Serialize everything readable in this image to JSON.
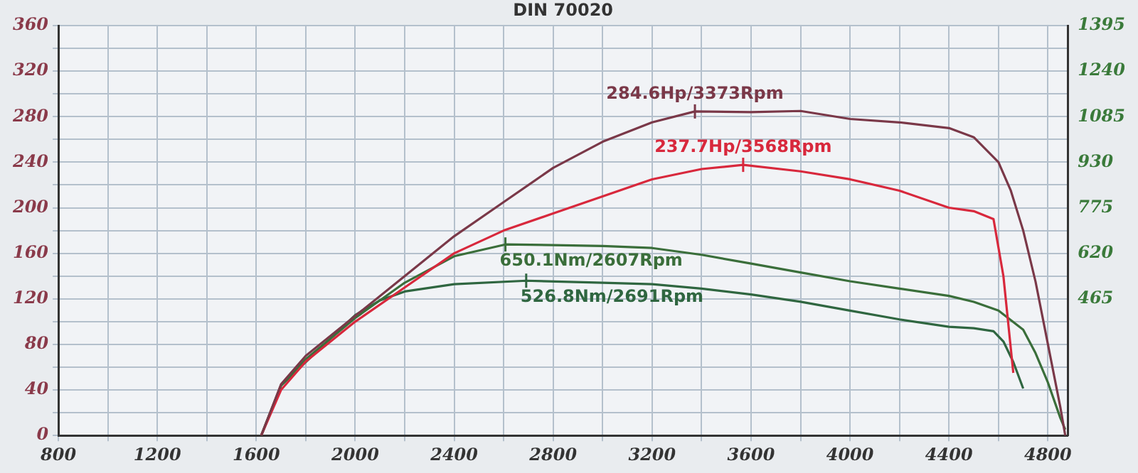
{
  "chart_data": {
    "type": "line",
    "annotations": [
      "DIN 70020"
    ],
    "xlim": [
      800,
      4880
    ],
    "xticks": [
      800,
      {
        "value": 1000,
        "label": null
      },
      1200,
      {
        "value": 1400,
        "label": null
      },
      1600,
      {
        "value": 1800,
        "label": null
      },
      2000,
      {
        "value": 2200,
        "label": null
      },
      2400,
      {
        "value": 2600,
        "label": null
      },
      2800,
      {
        "value": 3000,
        "label": null
      },
      3200,
      {
        "value": 3400,
        "label": null
      },
      3600,
      {
        "value": 3800,
        "label": null
      },
      4000,
      {
        "value": 4200,
        "label": null
      },
      4400,
      {
        "value": 4600,
        "label": null
      },
      4800
    ],
    "ylim": [
      0,
      360
    ],
    "yticks": [
      0,
      {
        "value": 20,
        "label": null
      },
      40,
      {
        "value": 60,
        "label": null
      },
      80,
      {
        "value": 100,
        "label": null
      },
      120,
      {
        "value": 140,
        "label": null
      },
      160,
      {
        "value": 180,
        "label": null
      },
      200,
      {
        "value": 220,
        "label": null
      },
      240,
      {
        "value": 260,
        "label": null
      },
      280,
      {
        "value": 300,
        "label": null
      },
      320,
      {
        "value": 340,
        "label": null
      },
      360
    ],
    "y2lim": [
      0,
      1395
    ],
    "y2ticks": [
      465,
      620,
      775,
      930,
      1085,
      1240,
      1395
    ],
    "grid": true,
    "legend": false,
    "marker": "none",
    "line_style": "solid",
    "series": [
      {
        "color": "#7a3848",
        "x": [
          1620,
          1700,
          1800,
          2000,
          2200,
          2400,
          2600,
          2800,
          3000,
          3200,
          3373,
          3600,
          3800,
          4000,
          4200,
          4400,
          4500,
          4600,
          4650,
          4700,
          4750,
          4800,
          4850,
          4870
        ],
        "values": [
          0,
          45,
          70,
          105,
          140,
          175,
          205,
          235,
          258,
          275,
          284.6,
          284,
          285,
          278,
          275,
          270,
          262,
          240,
          215,
          180,
          135,
          80,
          25,
          0
        ],
        "value_labels": [
          null,
          null,
          null,
          null,
          null,
          null,
          null,
          null,
          null,
          null,
          "284.6Hp/3373Rpm",
          null,
          null,
          null,
          null,
          null,
          null,
          null,
          null,
          null,
          null,
          null,
          null,
          null
        ]
      },
      {
        "color": "#d8283c",
        "x": [
          1620,
          1700,
          1800,
          2000,
          2200,
          2400,
          2600,
          2800,
          3000,
          3200,
          3400,
          3568,
          3800,
          4000,
          4200,
          4400,
          4500,
          4580,
          4620,
          4660
        ],
        "values": [
          0,
          40,
          65,
          100,
          130,
          160,
          180,
          195,
          210,
          225,
          234,
          237.7,
          232,
          225,
          215,
          200,
          197,
          190,
          140,
          55
        ],
        "value_labels": [
          null,
          null,
          null,
          null,
          null,
          null,
          null,
          null,
          null,
          null,
          null,
          "237.7Hp/3568Rpm",
          null,
          null,
          null,
          null,
          null,
          null,
          null,
          null
        ]
      },
      {
        "color": "#3a6e3a",
        "axis": "y2",
        "x": [
          1620,
          1700,
          1800,
          1900,
          2000,
          2200,
          2400,
          2607,
          2800,
          3000,
          3200,
          3400,
          3600,
          3800,
          4000,
          4200,
          4400,
          4500,
          4600,
          4700,
          4750,
          4800,
          4850,
          4870
        ],
        "values": [
          0,
          170,
          260,
          330,
          400,
          520,
          610,
          650.1,
          648,
          645,
          638,
          615,
          585,
          555,
          525,
          500,
          475,
          455,
          425,
          360,
          280,
          180,
          60,
          20
        ],
        "value_labels": [
          null,
          null,
          null,
          null,
          null,
          null,
          null,
          "650.1Nm/2607Rpm",
          null,
          null,
          null,
          null,
          null,
          null,
          null,
          null,
          null,
          null,
          null,
          null,
          null,
          null,
          null,
          null
        ]
      },
      {
        "color": "#2f6640",
        "axis": "y2",
        "x": [
          1620,
          1700,
          1800,
          1900,
          2000,
          2100,
          2200,
          2400,
          2691,
          3000,
          3200,
          3400,
          3600,
          3800,
          4000,
          4200,
          4400,
          4500,
          4580,
          4620,
          4660,
          4700
        ],
        "values": [
          0,
          170,
          250,
          330,
          410,
          460,
          490,
          515,
          526.8,
          520,
          515,
          500,
          480,
          455,
          425,
          395,
          370,
          365,
          355,
          320,
          250,
          160
        ],
        "value_labels": [
          null,
          null,
          null,
          null,
          null,
          null,
          null,
          null,
          "526.8Nm/2691Rpm",
          null,
          null,
          null,
          null,
          null,
          null,
          null,
          null,
          null,
          null,
          null,
          null,
          null
        ]
      }
    ]
  }
}
